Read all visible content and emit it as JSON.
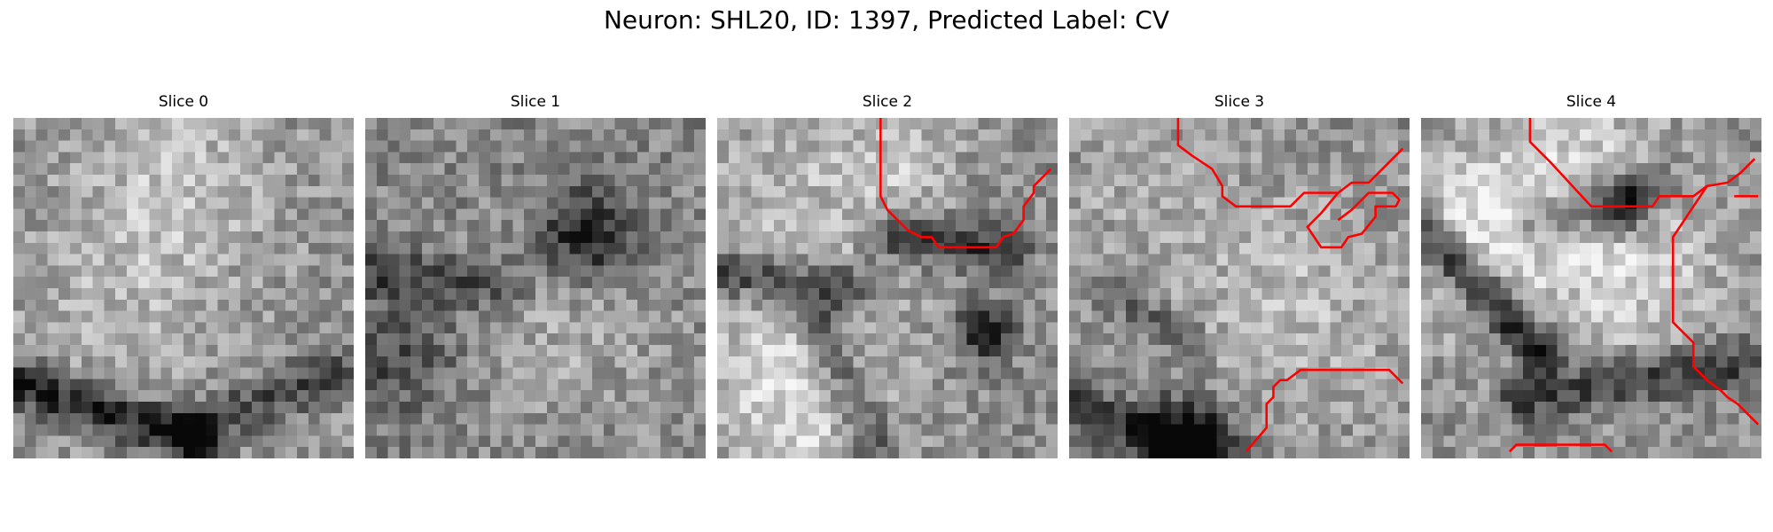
{
  "figure": {
    "title": "Neuron: SHL20, ID: 1397, Predicted Label: CV",
    "colormap": "grayscale",
    "contour_color": "#ff0000",
    "grid_size": 30,
    "slices": [
      {
        "title": "Slice 0",
        "has_contour": false
      },
      {
        "title": "Slice 1",
        "has_contour": false
      },
      {
        "title": "Slice 2",
        "has_contour": true
      },
      {
        "title": "Slice 3",
        "has_contour": true
      },
      {
        "title": "Slice 4",
        "has_contour": true
      }
    ]
  }
}
